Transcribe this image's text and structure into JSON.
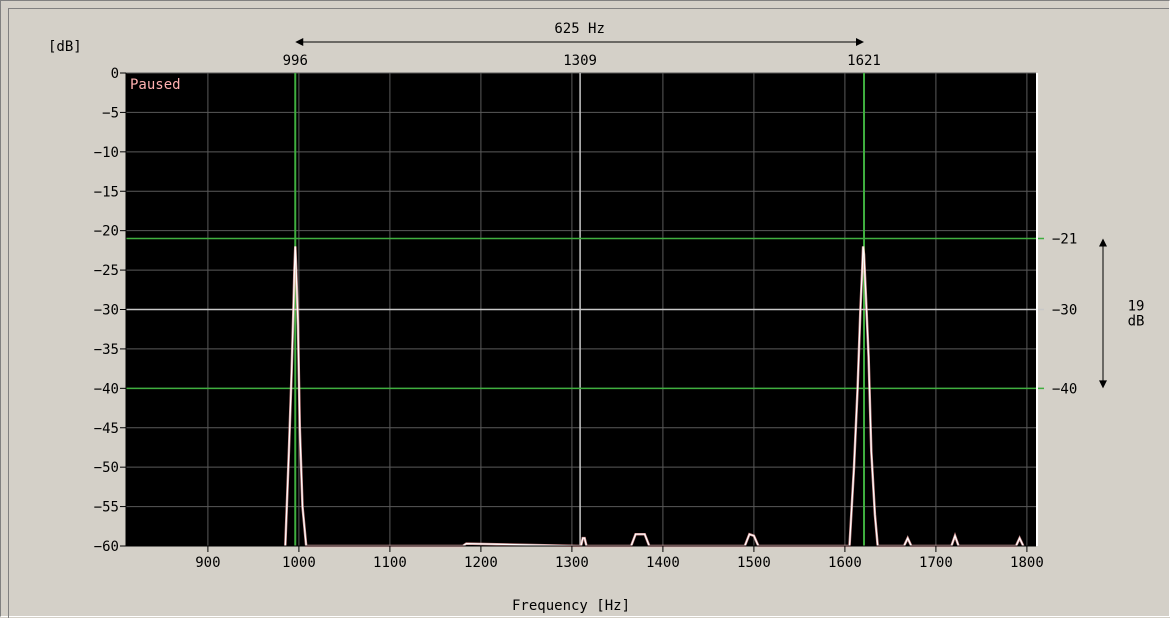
{
  "chart_data": {
    "type": "line",
    "status": "Paused",
    "ylabel": "[dB]",
    "xlabel": "Frequency [Hz]",
    "xlim": [
      810,
      1810
    ],
    "ylim": [
      -60,
      0
    ],
    "grid": true,
    "x_ticks": [
      900,
      1000,
      1100,
      1200,
      1300,
      1400,
      1500,
      1600,
      1700,
      1800
    ],
    "y_ticks": [
      0,
      -5,
      -10,
      -15,
      -20,
      -25,
      -30,
      -35,
      -40,
      -45,
      -50,
      -55,
      -60
    ],
    "markers": {
      "freq1": 996,
      "freq2": 1621,
      "center": 1309,
      "delta_label": "625 Hz",
      "levels": [
        -21,
        -30,
        -40
      ],
      "level_delta_value": "19",
      "level_delta_unit": "dB"
    },
    "series": [
      {
        "color": "#ffffff",
        "x": [
          985,
          989,
          992,
          994,
          995,
          996,
          997,
          999,
          1001,
          1004,
          1008,
          1180,
          1184,
          1310,
          1312,
          1314,
          1316,
          1365,
          1370,
          1375,
          1380,
          1385,
          1490,
          1495,
          1500,
          1505,
          1605,
          1610,
          1614,
          1617,
          1619,
          1620,
          1621,
          1623,
          1626,
          1629,
          1633,
          1636,
          1665,
          1669,
          1673,
          1717,
          1721,
          1725,
          1788,
          1792,
          1796
        ],
        "y": [
          -60,
          -48,
          -38,
          -30,
          -25,
          -22,
          -25,
          -32,
          -45,
          -55,
          -60,
          -60,
          -59.7,
          -60,
          -59,
          -59,
          -60,
          -60,
          -58.5,
          -58.5,
          -58.5,
          -60,
          -60,
          -58.5,
          -58.7,
          -60,
          -60,
          -50,
          -40,
          -30,
          -25,
          -22,
          -23,
          -28,
          -36,
          -48,
          -56,
          -60,
          -60,
          -59,
          -60,
          -60,
          -58.7,
          -60,
          -60,
          -59,
          -60
        ]
      }
    ]
  }
}
